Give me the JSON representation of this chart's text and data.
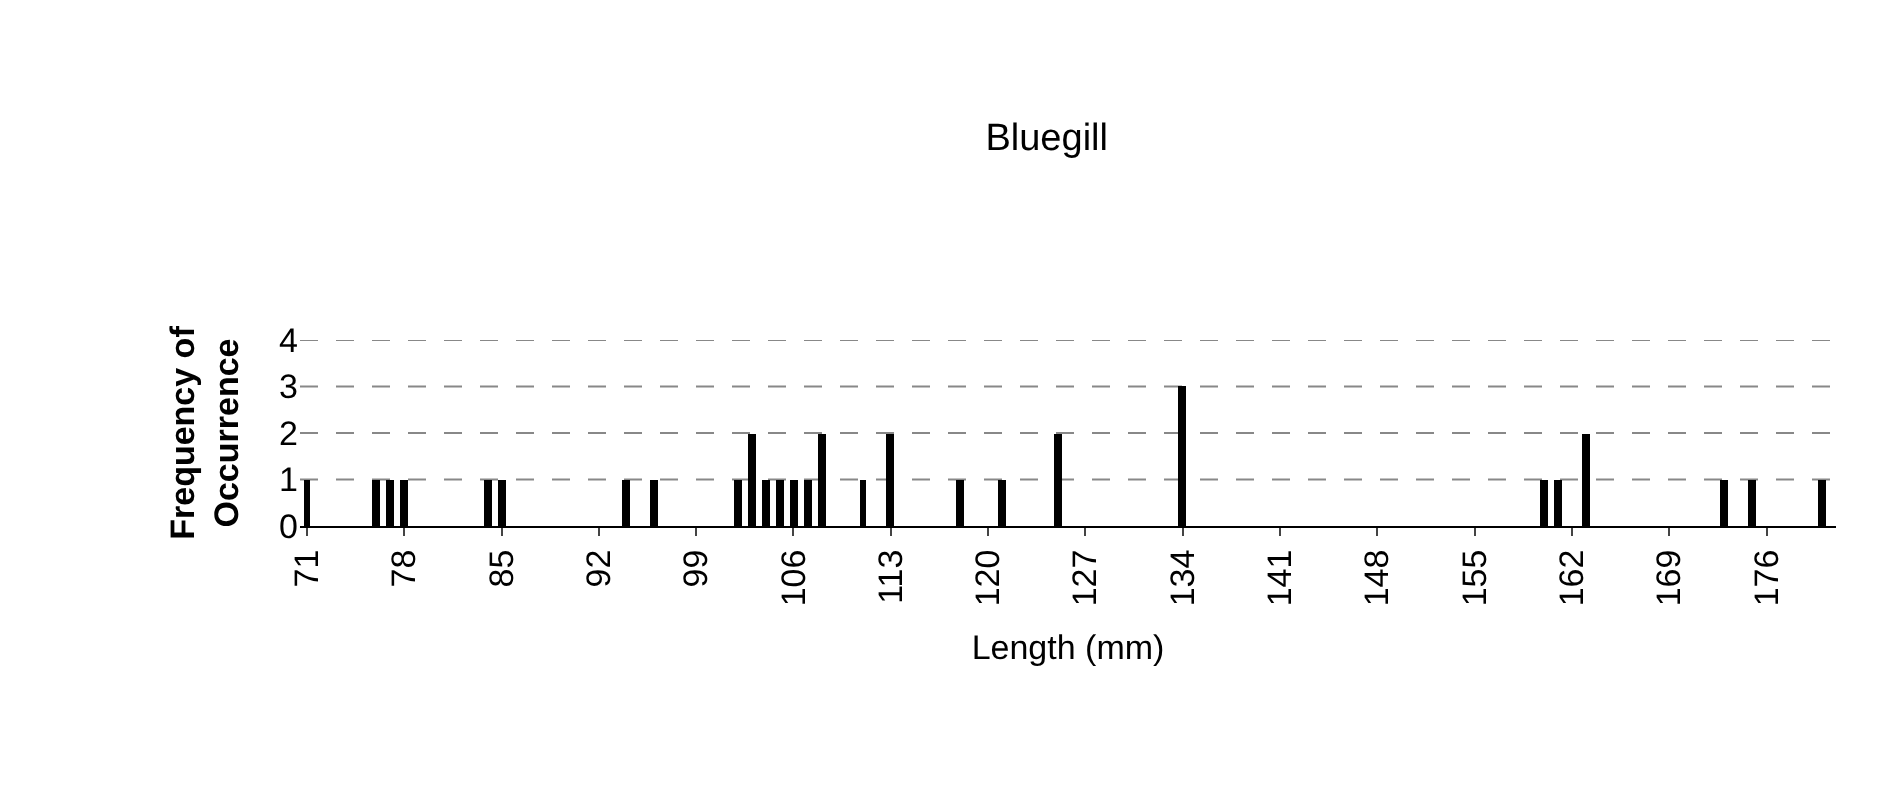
{
  "chart_data": {
    "type": "bar",
    "title": "Bluegill",
    "xlabel": "Length (mm)",
    "ylabel": "Frequency of\nOccurrence",
    "x": [
      71,
      76,
      77,
      78,
      84,
      85,
      94,
      96,
      102,
      103,
      104,
      105,
      106,
      107,
      108,
      111,
      113,
      118,
      121,
      125,
      134,
      160,
      161,
      163,
      173,
      175,
      180
    ],
    "values": [
      1,
      1,
      1,
      1,
      1,
      1,
      1,
      1,
      1,
      2,
      1,
      1,
      1,
      1,
      2,
      1,
      2,
      1,
      1,
      2,
      3,
      1,
      1,
      2,
      1,
      1,
      1
    ],
    "color": "#000000",
    "xlim": [
      70.5,
      181
    ],
    "xticks": [
      71,
      78,
      85,
      92,
      99,
      106,
      113,
      120,
      127,
      134,
      141,
      148,
      155,
      162,
      169,
      176
    ],
    "ylim": [
      0,
      4
    ],
    "yticks": [
      0,
      1,
      2,
      3,
      4
    ],
    "grid": "y"
  }
}
